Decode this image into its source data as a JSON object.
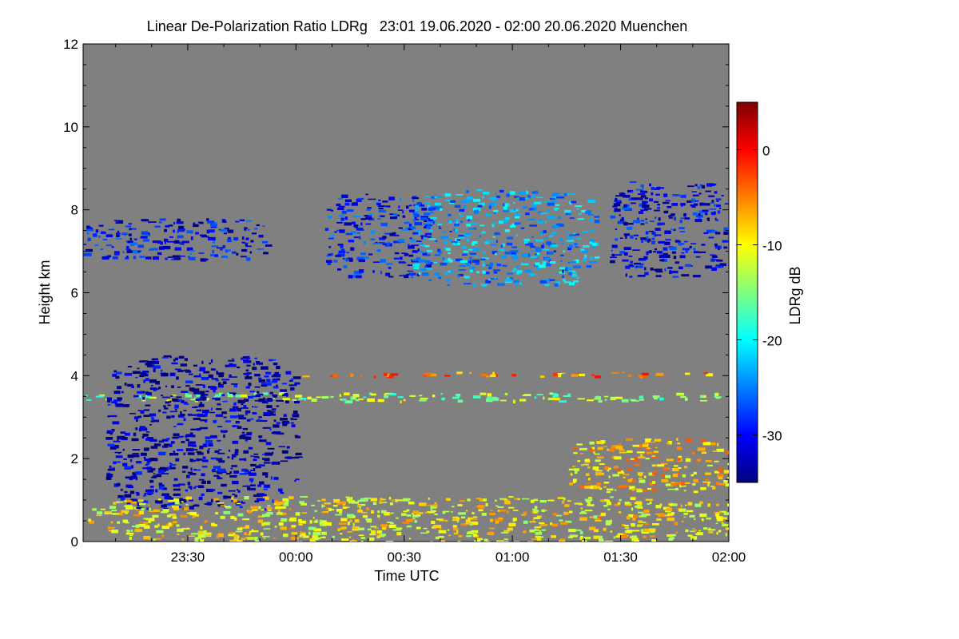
{
  "chart_data": {
    "type": "heatmap",
    "title": "Linear De-Polarization Ratio LDRg   23:01 19.06.2020 - 02:00 20.06.2020 Muenchen",
    "xlabel": "Time UTC",
    "ylabel": "Height km",
    "x_unit": "minutes since 23:00 UTC",
    "xlim": [
      1,
      180
    ],
    "ylim": [
      0,
      12
    ],
    "x_ticks": [
      {
        "value": 30,
        "label": "23:30"
      },
      {
        "value": 60,
        "label": "00:00"
      },
      {
        "value": 90,
        "label": "00:30"
      },
      {
        "value": 120,
        "label": "01:00"
      },
      {
        "value": 150,
        "label": "01:30"
      },
      {
        "value": 180,
        "label": "02:00"
      }
    ],
    "y_ticks": [
      {
        "value": 0,
        "label": "0"
      },
      {
        "value": 2,
        "label": "2"
      },
      {
        "value": 4,
        "label": "4"
      },
      {
        "value": 6,
        "label": "6"
      },
      {
        "value": 8,
        "label": "8"
      },
      {
        "value": 10,
        "label": "10"
      },
      {
        "value": 12,
        "label": "12"
      }
    ],
    "colorbar": {
      "label": "LDRg dB",
      "range": [
        -35,
        5
      ],
      "ticks": [
        {
          "value": 0,
          "label": "0"
        },
        {
          "value": -10,
          "label": "-10"
        },
        {
          "value": -20,
          "label": "-20"
        },
        {
          "value": -30,
          "label": "-30"
        }
      ]
    },
    "background_color": "#808080",
    "features": [
      {
        "name": "cirrus-band-west",
        "x": [
          1,
          52
        ],
        "y": [
          6.8,
          7.8
        ],
        "ldr_db": -30
      },
      {
        "name": "cirrus-tail-middle",
        "x": [
          68,
          97
        ],
        "y": [
          6.4,
          8.4
        ],
        "ldr_db": -29
      },
      {
        "name": "cirrus-main-core",
        "x": [
          92,
          143
        ],
        "y": [
          6.2,
          8.5
        ],
        "ldr_db": -24
      },
      {
        "name": "cirrus-east",
        "x": [
          147,
          179
        ],
        "y": [
          6.4,
          8.7
        ],
        "ldr_db": -31
      },
      {
        "name": "mid-level-layer",
        "x": [
          1,
          180
        ],
        "y": [
          3.4,
          3.6
        ],
        "ldr_db": -14
      },
      {
        "name": "layer-4km",
        "x": [
          60,
          180
        ],
        "y": [
          4.0,
          4.1
        ],
        "ldr_db": -5
      },
      {
        "name": "fall-streaks",
        "x": [
          7,
          60
        ],
        "y": [
          0.8,
          4.5
        ],
        "ldr_db": -33
      },
      {
        "name": "boundary-layer",
        "x": [
          1,
          180
        ],
        "y": [
          0,
          1.1
        ],
        "ldr_db": -10
      },
      {
        "name": "convective-plumes-east",
        "x": [
          135,
          180
        ],
        "y": [
          1.2,
          2.5
        ],
        "ldr_db": -8
      }
    ]
  }
}
